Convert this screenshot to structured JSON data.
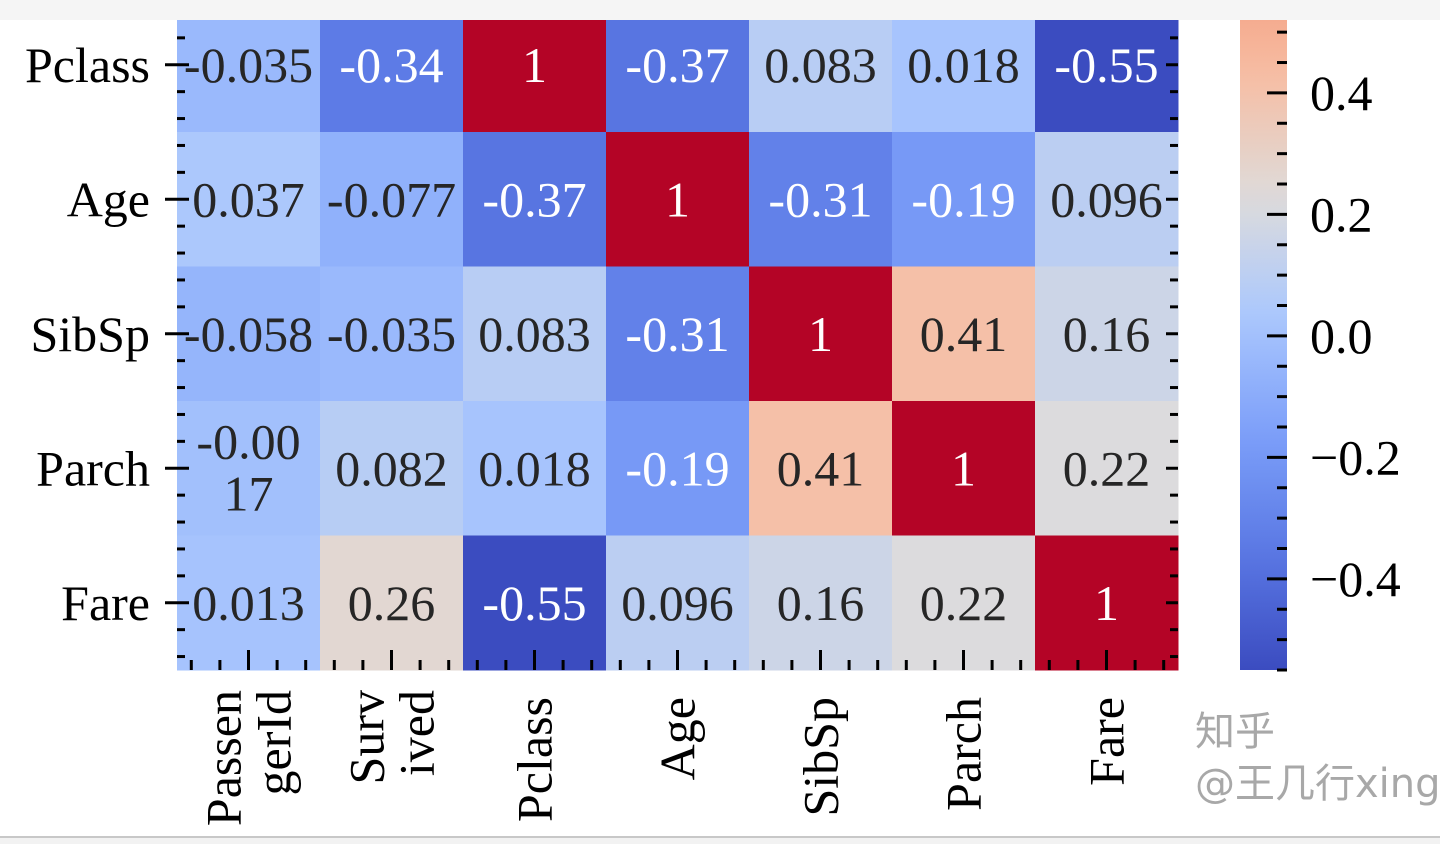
{
  "chart_data": {
    "type": "heatmap",
    "title": "",
    "colormap": "coolwarm",
    "color_range": [
      -0.55,
      1
    ],
    "columns": [
      "PassengerId",
      "Survived",
      "Pclass",
      "Age",
      "SibSp",
      "Parch",
      "Fare"
    ],
    "rows": [
      "Pclass",
      "Age",
      "SibSp",
      "Parch",
      "Fare"
    ],
    "values": [
      [
        -0.035,
        -0.34,
        1,
        -0.37,
        0.083,
        0.018,
        -0.55
      ],
      [
        0.037,
        -0.077,
        -0.37,
        1,
        -0.31,
        -0.19,
        0.096
      ],
      [
        -0.058,
        -0.035,
        0.083,
        -0.31,
        1,
        0.41,
        0.16
      ],
      [
        -0.0017,
        0.082,
        0.018,
        -0.19,
        0.41,
        1,
        0.22
      ],
      [
        0.013,
        0.26,
        -0.55,
        0.096,
        0.16,
        0.22,
        1
      ]
    ],
    "annotations": [
      [
        "-0.035",
        "-0.34",
        "1",
        "-0.37",
        "0.083",
        "0.018",
        "-0.55"
      ],
      [
        "0.037",
        "-0.077",
        "-0.37",
        "1",
        "-0.31",
        "-0.19",
        "0.096"
      ],
      [
        "-0.058",
        "-0.035",
        "0.083",
        "-0.31",
        "1",
        "0.41",
        "0.16"
      ],
      [
        "-0.0017",
        "0.082",
        "0.018",
        "-0.19",
        "0.41",
        "1",
        "0.22"
      ],
      [
        "0.013",
        "0.26",
        "-0.55",
        "0.096",
        "0.16",
        "0.22",
        "1"
      ]
    ],
    "colorbar": {
      "range": [
        -0.55,
        0.52
      ],
      "ticks": [
        0.4,
        0.2,
        0.0,
        -0.2,
        -0.4
      ],
      "tick_labels": [
        "0.4",
        "0.2",
        "0.0",
        "−0.2",
        "−0.4"
      ]
    }
  },
  "watermark": "知乎 @王几行xing"
}
